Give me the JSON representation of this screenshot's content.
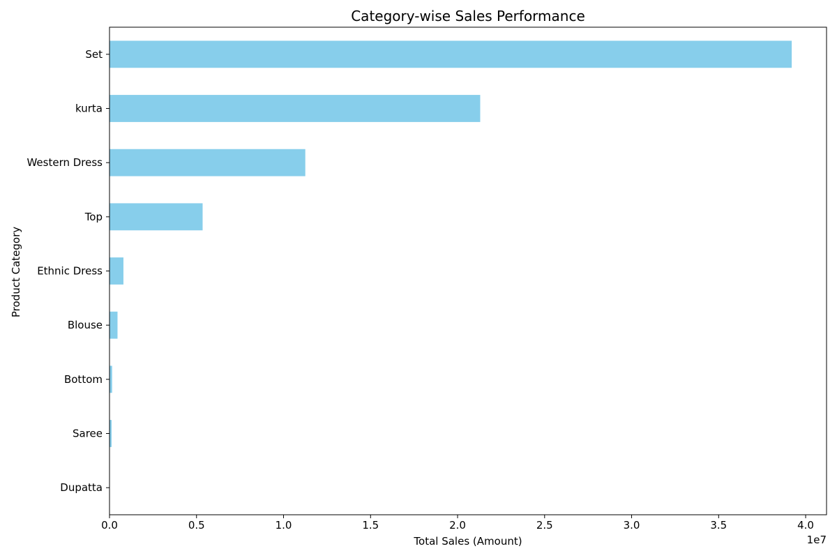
{
  "chart_data": {
    "type": "bar",
    "orientation": "horizontal",
    "title": "Category-wise Sales Performance",
    "xlabel": "Total Sales (Amount)",
    "ylabel": "Product Category",
    "x_offset_label": "1e7",
    "x_scale": 10000000,
    "xlim": [
      0,
      4.12
    ],
    "xticks": [
      0.0,
      0.5,
      1.0,
      1.5,
      2.0,
      2.5,
      3.0,
      3.5,
      4.0
    ],
    "xtick_labels": [
      "0.0",
      "0.5",
      "1.0",
      "1.5",
      "2.0",
      "2.5",
      "3.0",
      "3.5",
      "4.0"
    ],
    "categories": [
      "Set",
      "kurta",
      "Western Dress",
      "Top",
      "Ethnic Dress",
      "Blouse",
      "Bottom",
      "Saree",
      "Dupatta"
    ],
    "values": [
      39200000,
      21300000,
      11250000,
      5350000,
      800000,
      460000,
      150000,
      120000,
      900
    ],
    "bar_color": "#87CEEB",
    "grid": false,
    "legend": "none"
  }
}
